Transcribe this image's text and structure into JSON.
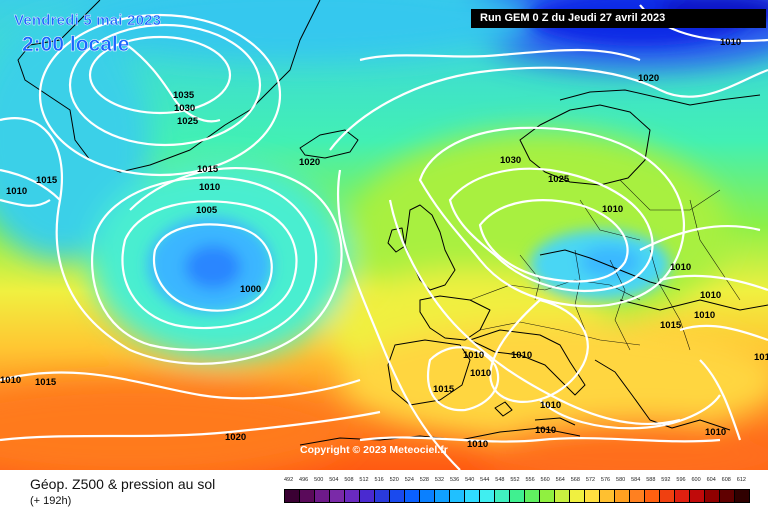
{
  "header": {
    "date": "Vendredi 5 mai 2023",
    "time": "2:00 locale",
    "run": "Run GEM 0 Z du Jeudi 27 avril 2023"
  },
  "copyright": "Copyright © 2023 Meteociel.fr",
  "footer": {
    "field": "Géop. Z500 & pression au sol",
    "lead": "(+ 192h)"
  },
  "colors": {
    "water": "#ffffff",
    "iso_line": "#ffffff",
    "coast": "#000000"
  },
  "isobar_labels": [
    "1010",
    "1020",
    "1035",
    "1030",
    "1025",
    "1020",
    "1015",
    "1010",
    "1015",
    "1010",
    "1005",
    "1000",
    "1030",
    "1025",
    "1010",
    "1010",
    "1010",
    "1015",
    "1010",
    "1010",
    "1010",
    "1010",
    "1015",
    "1010",
    "1010",
    "1015",
    "1010",
    "1010",
    "1020",
    "1010",
    "1010"
  ],
  "legend": {
    "values": [
      "492",
      "496",
      "500",
      "504",
      "508",
      "512",
      "516",
      "520",
      "524",
      "528",
      "532",
      "536",
      "540",
      "544",
      "548",
      "552",
      "556",
      "560",
      "564",
      "568",
      "572",
      "576",
      "580",
      "584",
      "588",
      "592",
      "596",
      "600",
      "604",
      "608",
      "612"
    ],
    "colors": [
      "#3a0033",
      "#5a0a5a",
      "#6e1a8a",
      "#7a2aa8",
      "#6a2ac0",
      "#4a2ad0",
      "#2a3adc",
      "#1a4aee",
      "#0a60ff",
      "#0a80ff",
      "#10a0ff",
      "#20c0ff",
      "#30dcff",
      "#40eef0",
      "#40f0c0",
      "#40f090",
      "#60f060",
      "#90f040",
      "#c8f040",
      "#f0f040",
      "#ffe040",
      "#ffc030",
      "#ffa020",
      "#ff8020",
      "#ff6010",
      "#f04010",
      "#e02010",
      "#c00a0a",
      "#900000",
      "#600000",
      "#300000"
    ]
  }
}
